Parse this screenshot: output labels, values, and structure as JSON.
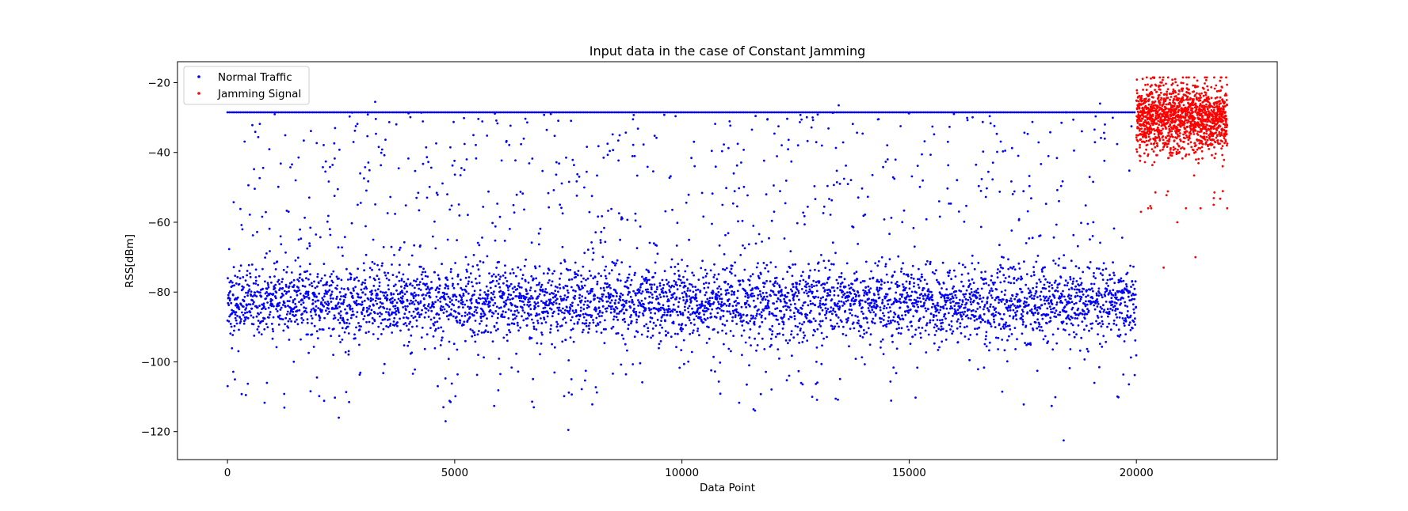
{
  "chart_data": {
    "type": "scatter",
    "title": "Input data in the case of Constant Jamming",
    "xlabel": "Data Point",
    "ylabel": "RSS[dBm]",
    "xlim": [
      -1100,
      23100
    ],
    "ylim": [
      -128,
      -14
    ],
    "xticks": [
      0,
      5000,
      10000,
      15000,
      20000
    ],
    "yticks": [
      -20,
      -40,
      -60,
      -80,
      -100,
      -120
    ],
    "grid": false,
    "legend_position": "top-left",
    "series": [
      {
        "name": "Normal Traffic",
        "color": "#0000ff",
        "x_range": [
          0,
          20000
        ],
        "point_count": 20000,
        "ceiling_level": -28.5,
        "dense_band": [
          -95,
          -75
        ],
        "y_min": -122.5,
        "y_max": -25.5,
        "description_values": {
          "band_center": -83,
          "band_spread": 5,
          "sparse_points_between": [
            -75,
            -28.5
          ],
          "sparse_points_below": [
            -122.5,
            -95
          ]
        }
      },
      {
        "name": "Jamming Signal",
        "color": "#ff0000",
        "x_range": [
          20000,
          22000
        ],
        "point_count": 2000,
        "band_center": -30,
        "band_spread": 5,
        "y_min": -73,
        "y_max": -18.5
      }
    ]
  }
}
